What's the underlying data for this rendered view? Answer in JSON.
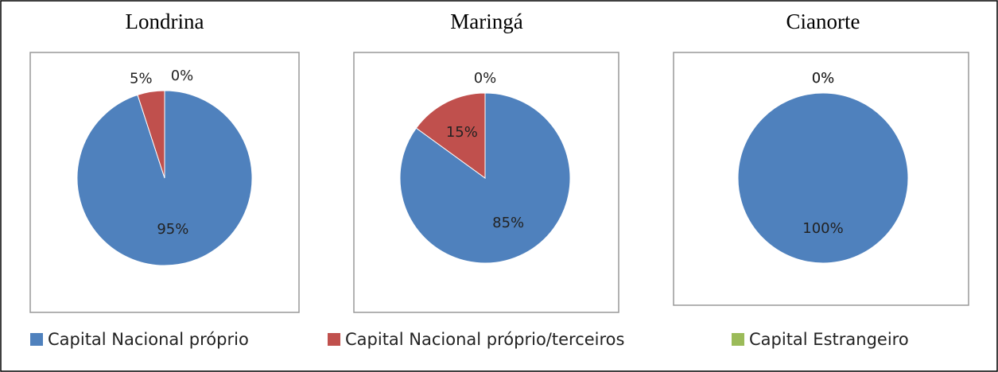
{
  "chart_data": [
    {
      "type": "pie",
      "title": "Londrina",
      "categories": [
        "Capital Nacional próprio",
        "Capital Nacional próprio/terceiros",
        "Capital Estrangeiro"
      ],
      "values": [
        95,
        5,
        0
      ],
      "value_labels": [
        "95%",
        "5%",
        "0%"
      ],
      "colors": [
        "#4f81bd",
        "#c0504d",
        "#9bbb59"
      ]
    },
    {
      "type": "pie",
      "title": "Maringá",
      "categories": [
        "Capital Nacional próprio",
        "Capital Nacional próprio/terceiros",
        "Capital Estrangeiro"
      ],
      "values": [
        85,
        15,
        0
      ],
      "value_labels": [
        "85%",
        "15%",
        "0%"
      ],
      "colors": [
        "#4f81bd",
        "#c0504d",
        "#9bbb59"
      ]
    },
    {
      "type": "pie",
      "title": "Cianorte",
      "categories": [
        "Capital Nacional próprio",
        "Capital Nacional próprio/terceiros",
        "Capital Estrangeiro"
      ],
      "values": [
        100,
        0,
        0
      ],
      "value_labels": [
        "100%",
        "0%",
        "0%"
      ],
      "colors": [
        "#4f81bd",
        "#c0504d",
        "#9bbb59"
      ]
    }
  ]
}
